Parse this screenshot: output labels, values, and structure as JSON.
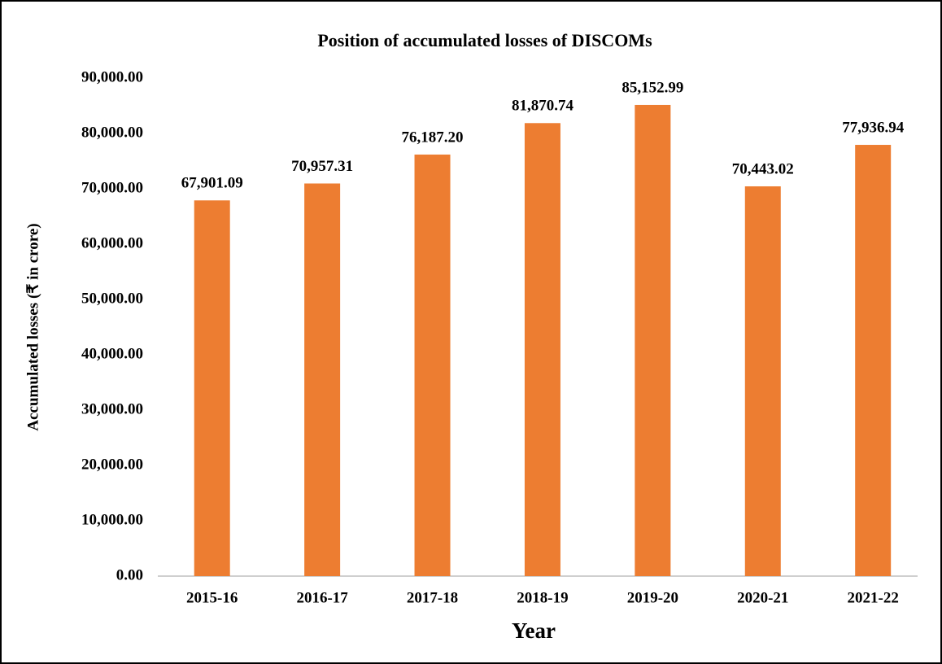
{
  "chart_data": {
    "type": "bar",
    "title": "Position of accumulated losses of DISCOMs",
    "xlabel": "Year",
    "ylabel": "Accumulated losses (₹  in crore)",
    "categories": [
      "2015-16",
      "2016-17",
      "2017-18",
      "2018-19",
      "2019-20",
      "2020-21",
      "2021-22"
    ],
    "values": [
      67901.09,
      70957.31,
      76187.2,
      81870.74,
      85152.99,
      70443.02,
      77936.94
    ],
    "value_labels": [
      "67,901.09",
      "70,957.31",
      "76,187.20",
      "81,870.74",
      "85,152.99",
      "70,443.02",
      "77,936.94"
    ],
    "color": "#ed7d31",
    "ylim": [
      0,
      90000
    ],
    "yticks": [
      {
        "value": 0,
        "label": "0.00"
      },
      {
        "value": 10000,
        "label": "10,000.00"
      },
      {
        "value": 20000,
        "label": "20,000.00"
      },
      {
        "value": 30000,
        "label": "30,000.00"
      },
      {
        "value": 40000,
        "label": "40,000.00"
      },
      {
        "value": 50000,
        "label": "50,000.00"
      },
      {
        "value": 60000,
        "label": "60,000.00"
      },
      {
        "value": 70000,
        "label": "70,000.00"
      },
      {
        "value": 80000,
        "label": "80,000.00"
      },
      {
        "value": 90000,
        "label": "90,000.00"
      }
    ],
    "grid": false
  }
}
